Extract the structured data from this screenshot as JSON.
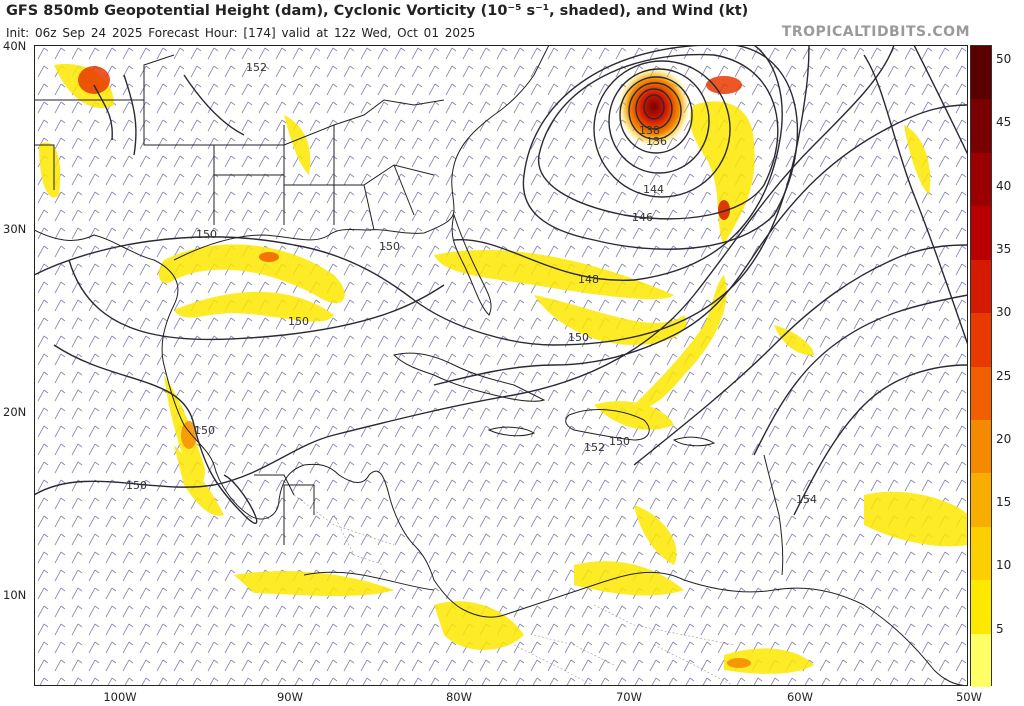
{
  "header": {
    "title": "GFS 850mb Geopotential Height (dam), Cyclonic Vorticity (10⁻⁵ s⁻¹, shaded), and Wind (kt)",
    "subtitle": "Init: 06z Sep 24 2025   Forecast Hour: [174]   valid at 12z Wed, Oct 01 2025",
    "brand": "TROPICALTIDBITS.COM"
  },
  "axes": {
    "lat_labels": [
      "40N",
      "30N",
      "20N",
      "10N"
    ],
    "lon_labels": [
      "100W",
      "90W",
      "80W",
      "70W",
      "60W",
      "50W"
    ]
  },
  "contour_labels": [
    "152",
    "150",
    "150",
    "150",
    "150",
    "150",
    "150",
    "150",
    "148",
    "146",
    "144",
    "136",
    "138",
    "152",
    "154"
  ],
  "colorbar": {
    "labels": [
      "50",
      "45",
      "40",
      "35",
      "30",
      "25",
      "20",
      "15",
      "10",
      "5"
    ],
    "colors": [
      "#5a0000",
      "#7a0000",
      "#9a0000",
      "#b80000",
      "#d41a00",
      "#e83a00",
      "#f06000",
      "#f48a00",
      "#f8ae00",
      "#fcd000",
      "#fde800",
      "#ffff66"
    ]
  },
  "colors": {
    "land": "#ffffff",
    "ocean": "#ffffff",
    "contour": "#2a2a33",
    "barb": "#7070a0",
    "border": "#222222"
  }
}
